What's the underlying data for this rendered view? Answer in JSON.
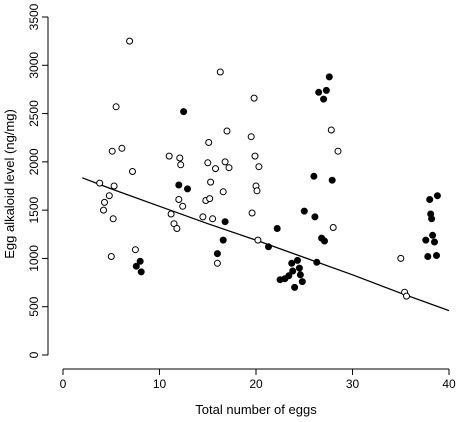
{
  "chart_data": {
    "type": "scatter",
    "title": "",
    "xlabel": "Total number of eggs",
    "ylabel": "Egg alkaloid level (ng/mg)",
    "xlim": [
      0,
      40
    ],
    "ylim": [
      0,
      3500
    ],
    "x_ticks": [
      0,
      10,
      20,
      30,
      40
    ],
    "y_ticks": [
      0,
      500,
      1000,
      1500,
      2000,
      2500,
      3000,
      3500
    ],
    "grid": false,
    "legend": "none",
    "series": [
      {
        "marker": "open-circle",
        "color": "#000000",
        "points": [
          [
            3.8,
            1780
          ],
          [
            4.2,
            1500
          ],
          [
            4.3,
            1580
          ],
          [
            4.8,
            1650
          ],
          [
            5.0,
            1020
          ],
          [
            5.1,
            2110
          ],
          [
            5.2,
            1410
          ],
          [
            5.3,
            1750
          ],
          [
            5.5,
            2570
          ],
          [
            6.1,
            2140
          ],
          [
            6.9,
            3250
          ],
          [
            7.2,
            1900
          ],
          [
            7.5,
            1090
          ],
          [
            11.0,
            2060
          ],
          [
            11.2,
            1460
          ],
          [
            11.5,
            1360
          ],
          [
            11.8,
            1310
          ],
          [
            12.0,
            1610
          ],
          [
            12.1,
            2040
          ],
          [
            12.2,
            1970
          ],
          [
            12.4,
            1540
          ],
          [
            14.5,
            1430
          ],
          [
            14.8,
            1600
          ],
          [
            15.0,
            1990
          ],
          [
            15.1,
            2200
          ],
          [
            15.2,
            1620
          ],
          [
            15.3,
            1790
          ],
          [
            15.5,
            1410
          ],
          [
            15.8,
            1930
          ],
          [
            16.0,
            950
          ],
          [
            16.3,
            2930
          ],
          [
            16.6,
            1690
          ],
          [
            16.8,
            2000
          ],
          [
            17.0,
            2320
          ],
          [
            17.2,
            1940
          ],
          [
            19.5,
            2260
          ],
          [
            19.6,
            1470
          ],
          [
            19.8,
            2660
          ],
          [
            19.9,
            2060
          ],
          [
            20.0,
            1750
          ],
          [
            20.1,
            1700
          ],
          [
            20.2,
            1190
          ],
          [
            20.3,
            1950
          ],
          [
            27.8,
            2330
          ],
          [
            28.0,
            1320
          ],
          [
            28.5,
            2110
          ],
          [
            35.0,
            1000
          ],
          [
            35.4,
            650
          ],
          [
            35.6,
            610
          ]
        ]
      },
      {
        "marker": "filled-circle",
        "color": "#000000",
        "points": [
          [
            7.6,
            920
          ],
          [
            8.0,
            970
          ],
          [
            8.1,
            860
          ],
          [
            12.0,
            1760
          ],
          [
            12.5,
            2520
          ],
          [
            12.9,
            1720
          ],
          [
            16.0,
            1050
          ],
          [
            16.6,
            1190
          ],
          [
            16.8,
            1380
          ],
          [
            21.3,
            1120
          ],
          [
            22.2,
            1310
          ],
          [
            22.5,
            780
          ],
          [
            23.0,
            790
          ],
          [
            23.4,
            820
          ],
          [
            23.7,
            950
          ],
          [
            23.8,
            870
          ],
          [
            24.0,
            700
          ],
          [
            24.3,
            980
          ],
          [
            24.5,
            900
          ],
          [
            24.6,
            830
          ],
          [
            24.8,
            760
          ],
          [
            25.0,
            1490
          ],
          [
            26.0,
            1850
          ],
          [
            26.1,
            1430
          ],
          [
            26.3,
            960
          ],
          [
            26.5,
            2720
          ],
          [
            26.8,
            1210
          ],
          [
            27.0,
            2650
          ],
          [
            27.1,
            1180
          ],
          [
            27.3,
            2740
          ],
          [
            27.6,
            2880
          ],
          [
            27.9,
            1810
          ],
          [
            37.6,
            1190
          ],
          [
            37.8,
            1020
          ],
          [
            38.0,
            1610
          ],
          [
            38.1,
            1460
          ],
          [
            38.2,
            1410
          ],
          [
            38.3,
            1240
          ],
          [
            38.5,
            1170
          ],
          [
            38.7,
            1030
          ],
          [
            38.8,
            1650
          ]
        ]
      }
    ],
    "fit_line": {
      "style": "solid",
      "points": [
        [
          2,
          1835
        ],
        [
          5,
          1720
        ],
        [
          10,
          1540
        ],
        [
          15,
          1360
        ],
        [
          20,
          1190
        ],
        [
          25,
          1010
        ],
        [
          30,
          830
        ],
        [
          35,
          640
        ],
        [
          40,
          460
        ]
      ]
    }
  }
}
